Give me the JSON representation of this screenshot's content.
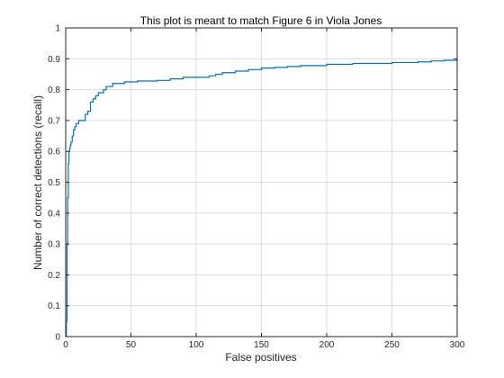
{
  "chart_data": {
    "type": "line",
    "title": "This plot is meant to match Figure 6 in Viola Jones",
    "xlabel": "False positives",
    "ylabel": "Number of correct detections (recall)",
    "xlim": [
      0,
      300
    ],
    "ylim": [
      0,
      1
    ],
    "xticks": [
      0,
      50,
      100,
      150,
      200,
      250,
      300
    ],
    "yticks": [
      0,
      0.1,
      0.2,
      0.3,
      0.4,
      0.5,
      0.6,
      0.7,
      0.8,
      0.9,
      1
    ],
    "xtick_labels": [
      "0",
      "50",
      "100",
      "150",
      "200",
      "250",
      "300"
    ],
    "ytick_labels": [
      "0",
      "0.1",
      "0.2",
      "0.3",
      "0.4",
      "0.5",
      "0.6",
      "0.7",
      "0.8",
      "0.9",
      "1"
    ],
    "grid": true,
    "line_color": "#0072bd",
    "series": [
      {
        "x": [
          0,
          0.5,
          1,
          1.5,
          2,
          2.5,
          3,
          3.5,
          4,
          5,
          6,
          7,
          8,
          10,
          12,
          15,
          17,
          19,
          21,
          23,
          25,
          27,
          29,
          31,
          33,
          36,
          40,
          45,
          55,
          70,
          80,
          90,
          100,
          110,
          115,
          120,
          130,
          140,
          150,
          160,
          170,
          180,
          200,
          220,
          250,
          270,
          280,
          290,
          300
        ],
        "y": [
          0.0,
          0.05,
          0.3,
          0.45,
          0.56,
          0.6,
          0.61,
          0.62,
          0.63,
          0.65,
          0.67,
          0.68,
          0.69,
          0.7,
          0.7,
          0.72,
          0.73,
          0.76,
          0.77,
          0.78,
          0.79,
          0.79,
          0.8,
          0.81,
          0.81,
          0.82,
          0.82,
          0.825,
          0.828,
          0.83,
          0.835,
          0.84,
          0.84,
          0.845,
          0.85,
          0.855,
          0.86,
          0.865,
          0.87,
          0.872,
          0.875,
          0.878,
          0.882,
          0.885,
          0.888,
          0.89,
          0.893,
          0.895,
          0.897
        ]
      }
    ]
  }
}
